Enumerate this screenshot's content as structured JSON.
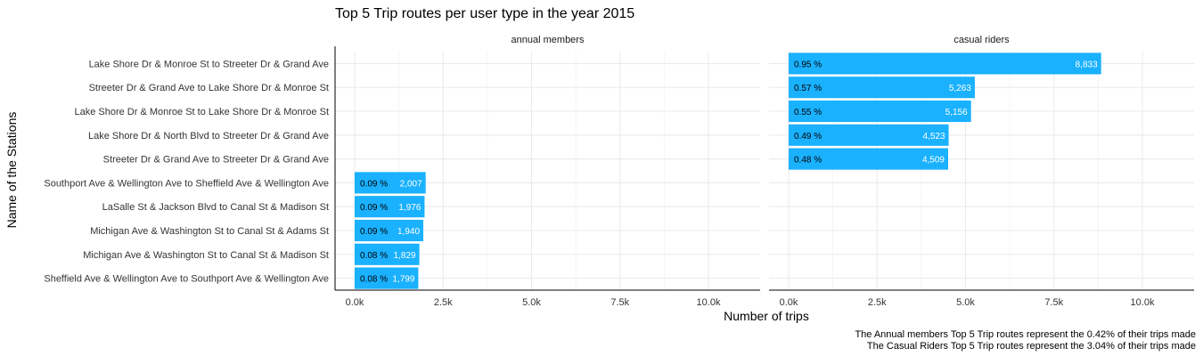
{
  "chart_data": {
    "type": "bar",
    "orientation": "horizontal",
    "title": "Top 5 Trip routes per user type in the year 2015",
    "xlabel": "Number of trips",
    "ylabel": "Name of the Stations",
    "xlim": [
      0,
      11000
    ],
    "x_ticks": [
      "0.0k",
      "2.5k",
      "5.0k",
      "7.5k",
      "10.0k"
    ],
    "x_tick_values": [
      0,
      2500,
      5000,
      7500,
      10000
    ],
    "grid": true,
    "bar_color": "#1AB1FF",
    "categories": [
      "Lake Shore Dr & Monroe St to Streeter Dr & Grand Ave",
      "Streeter Dr & Grand Ave to Lake Shore Dr & Monroe St",
      "Lake Shore Dr & Monroe St to Lake Shore Dr & Monroe St",
      "Lake Shore Dr & North Blvd to Streeter Dr & Grand Ave",
      "Streeter Dr & Grand Ave to Streeter Dr & Grand Ave",
      "Southport Ave & Wellington Ave to Sheffield Ave & Wellington Ave",
      "LaSalle St & Jackson Blvd to Canal St & Madison St",
      "Michigan Ave & Washington St to Canal St & Adams St",
      "Michigan Ave & Washington St to Canal St & Madison St",
      "Sheffield Ave & Wellington Ave to Southport Ave & Wellington Ave"
    ],
    "panels": [
      {
        "name": "annual members",
        "bars": [
          {
            "category_index": 5,
            "value": 2007,
            "value_label": "2,007",
            "pct_label": "0.09 %"
          },
          {
            "category_index": 6,
            "value": 1976,
            "value_label": "1,976",
            "pct_label": "0.09 %"
          },
          {
            "category_index": 7,
            "value": 1940,
            "value_label": "1,940",
            "pct_label": "0.09 %"
          },
          {
            "category_index": 8,
            "value": 1829,
            "value_label": "1,829",
            "pct_label": "0.08 %"
          },
          {
            "category_index": 9,
            "value": 1799,
            "value_label": "1,799",
            "pct_label": "0.08 %"
          }
        ]
      },
      {
        "name": "casual riders",
        "bars": [
          {
            "category_index": 0,
            "value": 8833,
            "value_label": "8,833",
            "pct_label": "0.95 %"
          },
          {
            "category_index": 1,
            "value": 5263,
            "value_label": "5,263",
            "pct_label": "0.57 %"
          },
          {
            "category_index": 2,
            "value": 5156,
            "value_label": "5,156",
            "pct_label": "0.55 %"
          },
          {
            "category_index": 3,
            "value": 4523,
            "value_label": "4,523",
            "pct_label": "0.49 %"
          },
          {
            "category_index": 4,
            "value": 4509,
            "value_label": "4,509",
            "pct_label": "0.48 %"
          }
        ]
      }
    ],
    "captions": [
      "The Annual members Top 5 Trip routes represent the 0.42% of their trips made",
      "The Casual Riders Top 5 Trip routes represent the 3.04% of their trips made"
    ]
  }
}
